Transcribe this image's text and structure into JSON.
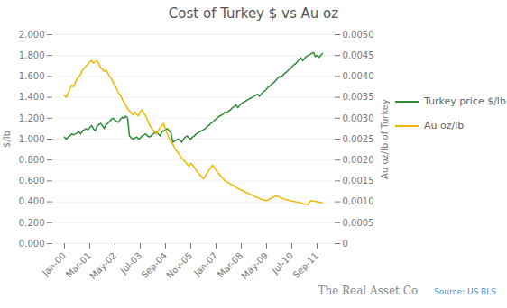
{
  "chart_data": {
    "type": "line",
    "title": "Cost of Turkey $ vs Au oz",
    "ylabel": "$/lb",
    "y2label": "Au oz/lb of Turkey",
    "categories": [
      "Jan-00",
      null,
      null,
      null,
      null,
      null,
      null,
      null,
      null,
      null,
      null,
      null,
      null,
      null,
      "Mar-01",
      null,
      null,
      null,
      null,
      null,
      null,
      null,
      null,
      null,
      null,
      null,
      null,
      null,
      "May-02",
      null,
      null,
      null,
      null,
      null,
      null,
      null,
      null,
      null,
      null,
      null,
      null,
      null,
      "Jul-03",
      null,
      null,
      null,
      null,
      null,
      null,
      null,
      null,
      null,
      null,
      null,
      null,
      null,
      "Sep-04",
      null,
      null,
      null,
      null,
      null,
      null,
      null,
      null,
      null,
      null,
      null,
      null,
      null,
      "Nov-05",
      null,
      null,
      null,
      null,
      null,
      null,
      null,
      null,
      null,
      null,
      null,
      null,
      null,
      "Jan-07",
      null,
      null,
      null,
      null,
      null,
      null,
      null,
      null,
      null,
      null,
      null,
      null,
      null,
      "Mar-08",
      null,
      null,
      null,
      null,
      null,
      null,
      null,
      null,
      null,
      null,
      null,
      null,
      null,
      "May-09",
      null,
      null,
      null,
      null,
      null,
      null,
      null,
      null,
      null,
      null,
      null,
      null,
      null,
      "Jul-10",
      null,
      null,
      null,
      null,
      null,
      null,
      null,
      null,
      null,
      null,
      null,
      null,
      null,
      "Sep-11",
      null,
      null,
      null
    ],
    "series": [
      {
        "name": "Turkey price $/lb",
        "color": "#2e8b3a",
        "axis": "y",
        "values": [
          1.02,
          1.0,
          1.02,
          1.03,
          1.05,
          1.04,
          1.05,
          1.06,
          1.07,
          1.05,
          1.08,
          1.09,
          1.1,
          1.09,
          1.11,
          1.13,
          1.1,
          1.08,
          1.12,
          1.14,
          1.15,
          1.13,
          1.1,
          1.14,
          1.15,
          1.17,
          1.19,
          1.2,
          1.18,
          1.17,
          1.16,
          1.19,
          1.21,
          1.2,
          1.22,
          1.2,
          1.03,
          1.01,
          1.0,
          1.01,
          1.02,
          1.0,
          1.01,
          1.03,
          1.04,
          1.05,
          1.03,
          1.02,
          1.03,
          1.05,
          1.06,
          1.07,
          1.05,
          1.03,
          1.07,
          1.08,
          1.09,
          1.1,
          1.08,
          1.06,
          0.97,
          0.98,
          0.99,
          1.0,
          0.99,
          0.97,
          1.0,
          1.02,
          1.03,
          1.01,
          1.0,
          1.02,
          1.03,
          1.05,
          1.06,
          1.07,
          1.08,
          1.09,
          1.1,
          1.12,
          1.13,
          1.15,
          1.16,
          1.18,
          1.19,
          1.21,
          1.22,
          1.23,
          1.24,
          1.26,
          1.25,
          1.27,
          1.28,
          1.3,
          1.31,
          1.33,
          1.3,
          1.32,
          1.34,
          1.35,
          1.36,
          1.37,
          1.38,
          1.39,
          1.4,
          1.41,
          1.42,
          1.43,
          1.41,
          1.43,
          1.45,
          1.46,
          1.48,
          1.5,
          1.51,
          1.53,
          1.54,
          1.56,
          1.58,
          1.6,
          1.59,
          1.61,
          1.63,
          1.64,
          1.66,
          1.67,
          1.69,
          1.71,
          1.72,
          1.74,
          1.76,
          1.78,
          1.75,
          1.77,
          1.79,
          1.8,
          1.81,
          1.82,
          1.83,
          1.79,
          1.8,
          1.78,
          1.8,
          1.82
        ]
      },
      {
        "name": "Au oz/lb",
        "color": "#f0b800",
        "axis": "y2",
        "values": [
          0.00355,
          0.0035,
          0.0036,
          0.0037,
          0.0038,
          0.00375,
          0.00385,
          0.00395,
          0.004,
          0.00405,
          0.00415,
          0.0042,
          0.00425,
          0.0043,
          0.00435,
          0.00438,
          0.00432,
          0.00435,
          0.00437,
          0.0043,
          0.0042,
          0.00418,
          0.00412,
          0.00415,
          0.00408,
          0.004,
          0.00395,
          0.00385,
          0.00378,
          0.0037,
          0.0036,
          0.00355,
          0.00345,
          0.00338,
          0.0033,
          0.00322,
          0.00318,
          0.00312,
          0.00308,
          0.00315,
          0.0031,
          0.00305,
          0.00315,
          0.0032,
          0.00312,
          0.00305,
          0.00295,
          0.00285,
          0.00278,
          0.00272,
          0.00268,
          0.00262,
          0.0027,
          0.00278,
          0.00282,
          0.00288,
          0.00272,
          0.00262,
          0.00252,
          0.00242,
          0.00238,
          0.0023,
          0.00222,
          0.00218,
          0.0021,
          0.00205,
          0.002,
          0.00195,
          0.0019,
          0.00185,
          0.00192,
          0.00188,
          0.00182,
          0.00175,
          0.0017,
          0.00165,
          0.0016,
          0.00155,
          0.00162,
          0.00168,
          0.00175,
          0.0018,
          0.00188,
          0.00182,
          0.00175,
          0.0017,
          0.00165,
          0.0016,
          0.00155,
          0.0015,
          0.00148,
          0.00145,
          0.00143,
          0.0014,
          0.00138,
          0.00135,
          0.00132,
          0.0013,
          0.00128,
          0.00126,
          0.00124,
          0.00122,
          0.0012,
          0.00118,
          0.00116,
          0.00114,
          0.00112,
          0.0011,
          0.00108,
          0.00106,
          0.00105,
          0.00104,
          0.00103,
          0.00105,
          0.00107,
          0.0011,
          0.00112,
          0.00114,
          0.00113,
          0.00112,
          0.0011,
          0.00108,
          0.00106,
          0.00105,
          0.00104,
          0.00103,
          0.00102,
          0.00101,
          0.001,
          0.00099,
          0.00098,
          0.00097,
          0.00096,
          0.00095,
          0.00094,
          0.00093,
          0.00101,
          0.00103,
          0.00102,
          0.00101,
          0.001,
          0.00099,
          0.00098,
          0.00097
        ]
      }
    ],
    "ylim": [
      0.0,
      2.0
    ],
    "yticks": [
      {
        "value": 0.0,
        "label": "0.000"
      },
      {
        "value": 0.2,
        "label": "0.200"
      },
      {
        "value": 0.4,
        "label": "0.400"
      },
      {
        "value": 0.6,
        "label": "0.600"
      },
      {
        "value": 0.8,
        "label": "0.800"
      },
      {
        "value": 1.0,
        "label": "1.000"
      },
      {
        "value": 1.2,
        "label": "1.200"
      },
      {
        "value": 1.4,
        "label": "1.400"
      },
      {
        "value": 1.6,
        "label": "1.600"
      },
      {
        "value": 1.8,
        "label": "1.800"
      },
      {
        "value": 2.0,
        "label": "2.000"
      }
    ],
    "y2lim": [
      0.0,
      0.005
    ],
    "y2ticks": [
      0,
      0.0005,
      {
        "value": 0.001,
        "label": "0.0010"
      },
      0.0015,
      {
        "value": 0.002,
        "label": "0.0020"
      },
      0.0025,
      {
        "value": 0.003,
        "label": "0.0030"
      },
      0.0035,
      {
        "value": 0.004,
        "label": "0.0040"
      },
      0.0045,
      {
        "value": 0.005,
        "label": "0.0050"
      }
    ],
    "grid": true,
    "legend": "right",
    "annotations": [
      "The Real Asset Co",
      "Source: US BLS"
    ]
  }
}
